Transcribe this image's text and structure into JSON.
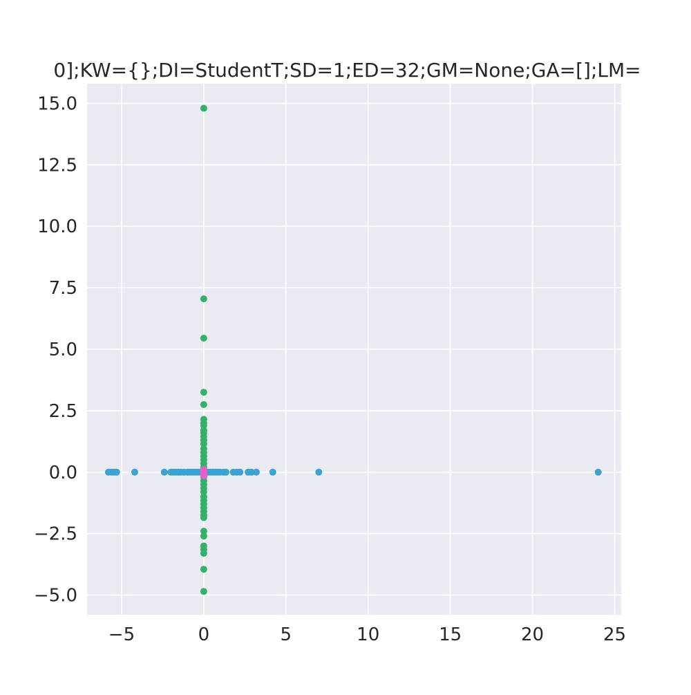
{
  "chart_data": {
    "type": "scatter",
    "title": "0];KW={};DI=StudentT;SD=1;ED=32;GM=None;GA=[];LM=",
    "xlabel": "",
    "ylabel": "",
    "xlim": [
      -7.1,
      25.4
    ],
    "ylim": [
      -5.8,
      15.8
    ],
    "x_ticks": [
      -5,
      0,
      5,
      10,
      15,
      20,
      25
    ],
    "x_tick_labels": [
      "−5",
      "0",
      "5",
      "10",
      "15",
      "20",
      "25"
    ],
    "y_ticks": [
      -5.0,
      -2.5,
      0.0,
      2.5,
      5.0,
      7.5,
      10.0,
      12.5,
      15.0
    ],
    "y_tick_labels": [
      "−5.0",
      "−2.5",
      "0.0",
      "2.5",
      "5.0",
      "7.5",
      "10.0",
      "12.5",
      "15.0"
    ],
    "grid": true,
    "background": "#eaeaf2",
    "series": [
      {
        "color": "#3ba3d0",
        "points": [
          [
            -5.8,
            0
          ],
          [
            -5.6,
            0
          ],
          [
            -5.45,
            0
          ],
          [
            -5.3,
            0
          ],
          [
            -4.2,
            0
          ],
          [
            -2.4,
            0
          ],
          [
            -2.0,
            0
          ],
          [
            -1.85,
            0
          ],
          [
            -1.7,
            0
          ],
          [
            -1.55,
            0
          ],
          [
            -1.4,
            0
          ],
          [
            -1.2,
            0
          ],
          [
            -1.0,
            0
          ],
          [
            -0.85,
            0
          ],
          [
            -0.7,
            0
          ],
          [
            -0.55,
            0
          ],
          [
            -0.4,
            0
          ],
          [
            -0.25,
            0
          ],
          [
            -0.1,
            0
          ],
          [
            0.1,
            0
          ],
          [
            0.25,
            0
          ],
          [
            0.4,
            0
          ],
          [
            0.55,
            0
          ],
          [
            0.7,
            0
          ],
          [
            0.85,
            0
          ],
          [
            1.0,
            0
          ],
          [
            1.2,
            0
          ],
          [
            1.35,
            0
          ],
          [
            1.8,
            0
          ],
          [
            2.0,
            0
          ],
          [
            2.2,
            0
          ],
          [
            2.7,
            0
          ],
          [
            2.9,
            0
          ],
          [
            3.2,
            0
          ],
          [
            4.2,
            0
          ],
          [
            7.0,
            0
          ],
          [
            24.0,
            0
          ]
        ]
      },
      {
        "color": "#33b06a",
        "points": [
          [
            0,
            14.8
          ],
          [
            0,
            7.05
          ],
          [
            0,
            5.45
          ],
          [
            0,
            3.25
          ],
          [
            0,
            2.75
          ],
          [
            0,
            2.15
          ],
          [
            0,
            2.0
          ],
          [
            0,
            1.9
          ],
          [
            0,
            1.7
          ],
          [
            0,
            1.6
          ],
          [
            0,
            1.45
          ],
          [
            0,
            1.3
          ],
          [
            0,
            1.15
          ],
          [
            0,
            0.95
          ],
          [
            0,
            0.8
          ],
          [
            0,
            0.65
          ],
          [
            0,
            0.5
          ],
          [
            0,
            0.35
          ],
          [
            0,
            0.2
          ],
          [
            0,
            -0.2
          ],
          [
            0,
            -0.35
          ],
          [
            0,
            -0.5
          ],
          [
            0,
            -0.65
          ],
          [
            0,
            -0.8
          ],
          [
            0,
            -1.0
          ],
          [
            0,
            -1.15
          ],
          [
            0,
            -1.3
          ],
          [
            0,
            -1.45
          ],
          [
            0,
            -1.6
          ],
          [
            0,
            -1.75
          ],
          [
            0,
            -1.85
          ],
          [
            0,
            -2.4
          ],
          [
            0,
            -2.6
          ],
          [
            0,
            -3.0
          ],
          [
            0,
            -3.15
          ],
          [
            0,
            -3.3
          ],
          [
            0,
            -3.95
          ],
          [
            0,
            -4.85
          ]
        ]
      },
      {
        "color": "#e65fc8",
        "points": [
          [
            0,
            0.1
          ],
          [
            0,
            0.05
          ],
          [
            0,
            0.0
          ],
          [
            0,
            -0.05
          ],
          [
            0,
            -0.1
          ],
          [
            0,
            -0.15
          ]
        ]
      }
    ]
  }
}
